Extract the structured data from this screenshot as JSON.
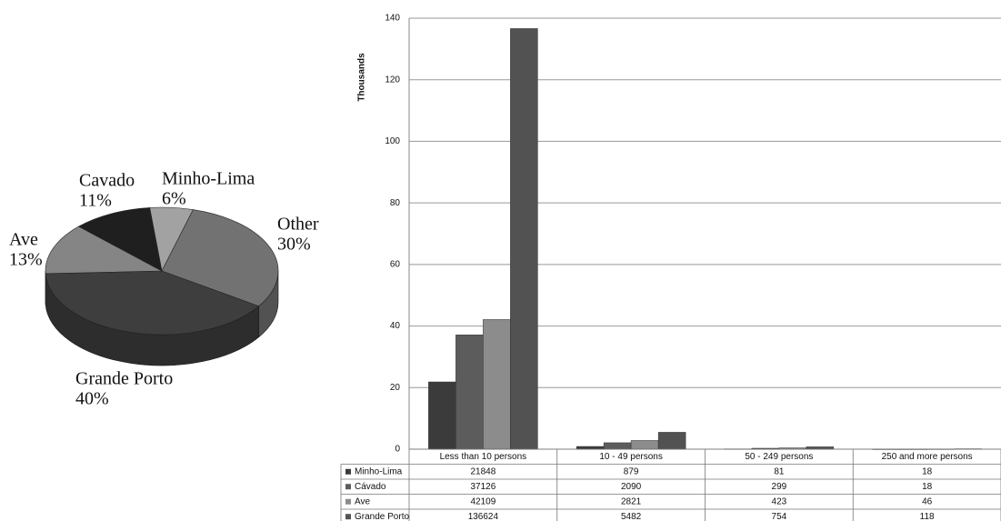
{
  "chart_data": [
    {
      "type": "pie",
      "categories": [
        "Minho-Lima",
        "Other",
        "Grande Porto",
        "Ave",
        "Cavado"
      ],
      "values": [
        6,
        30,
        40,
        13,
        11
      ],
      "value_labels": [
        "6%",
        "30%",
        "40%",
        "13%",
        "11%"
      ],
      "colors": [
        "#a2a2a2",
        "#727272",
        "#3e3e3e",
        "#858585",
        "#1f1f1f"
      ]
    },
    {
      "type": "bar",
      "y_label": "Thousands",
      "categories": [
        "Less than 10 persons",
        "10 - 49 persons",
        "50 - 249 persons",
        "250 and more persons"
      ],
      "series": [
        {
          "name": "Minho-Lima",
          "color": "#3b3b3b",
          "values": [
            21.848,
            0.879,
            0.081,
            0.018
          ],
          "value_labels": [
            "21848",
            "879",
            "81",
            "18"
          ]
        },
        {
          "name": "Cávado",
          "color": "#5c5c5c",
          "values": [
            37.126,
            2.09,
            0.299,
            0.018
          ],
          "value_labels": [
            "37126",
            "2090",
            "299",
            "18"
          ]
        },
        {
          "name": "Ave",
          "color": "#8c8c8c",
          "values": [
            42.109,
            2.821,
            0.423,
            0.046
          ],
          "value_labels": [
            "42109",
            "2821",
            "423",
            "46"
          ]
        },
        {
          "name": "Grande Porto",
          "color": "#525252",
          "values": [
            136.624,
            5.482,
            0.754,
            0.118
          ],
          "value_labels": [
            "136624",
            "5482",
            "754",
            "118"
          ]
        }
      ],
      "ylim": [
        0,
        140
      ],
      "yticks": [
        0,
        20,
        40,
        60,
        80,
        100,
        120,
        140
      ],
      "grid": true,
      "data_table": true
    }
  ]
}
